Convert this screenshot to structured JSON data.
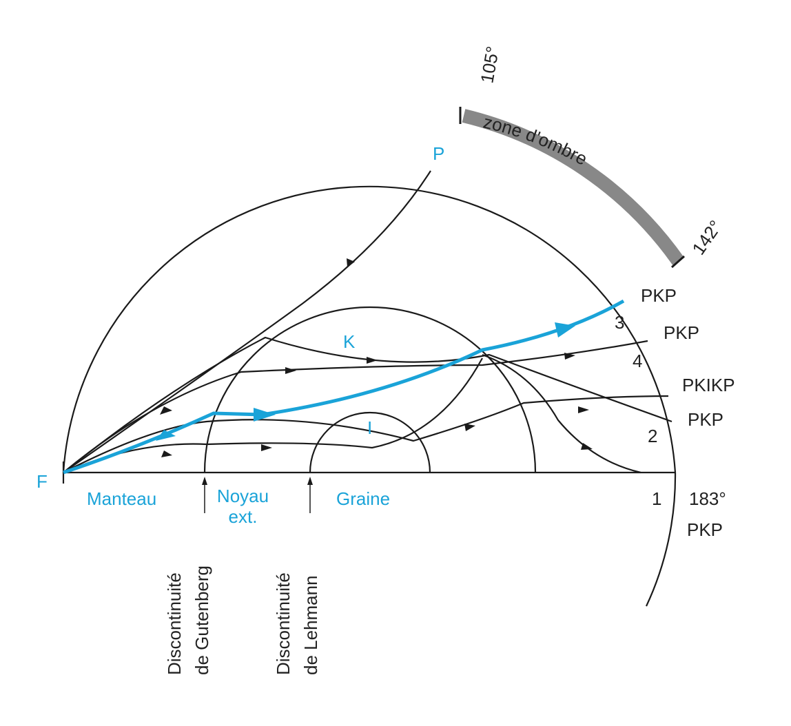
{
  "shadow_zone": {
    "start": "105°",
    "label": "zone d'ombre",
    "end": "142°"
  },
  "points": {
    "surface": "P",
    "outer_core": "K",
    "inner_core": "I",
    "focus": "F"
  },
  "rays": [
    {
      "name": "PKP",
      "number": "3"
    },
    {
      "name": "PKP",
      "number": "4"
    },
    {
      "name": "PKIKP"
    },
    {
      "name": "PKP",
      "number": "2"
    },
    {
      "name": "PKP",
      "number": "1",
      "angle": "183°"
    }
  ],
  "layers": [
    "Manteau",
    "Noyau ext.",
    "Graine"
  ],
  "discontinuities": [
    {
      "line1": "Discontinuité",
      "line2": "de Gutenberg"
    },
    {
      "line1": "Discontinuité",
      "line2": "de Lehmann"
    }
  ]
}
